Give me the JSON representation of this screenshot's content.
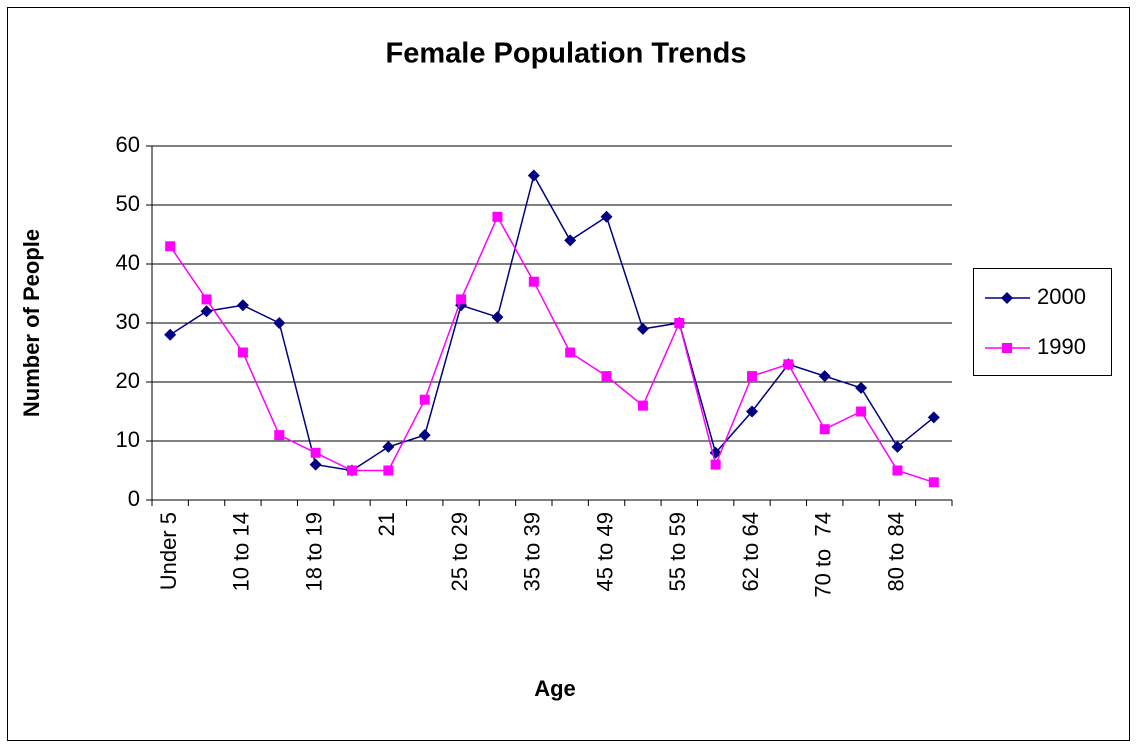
{
  "chart_data": {
    "type": "line",
    "title": "Female Population Trends",
    "x_label": "Age",
    "y_label": "Number of People",
    "categories": [
      "Under 5",
      null,
      "10 to 14",
      null,
      "18 to 19",
      null,
      "21",
      null,
      "25 to 29",
      null,
      "35 to 39",
      null,
      "45 to 49",
      null,
      "55 to 59",
      null,
      "62 to 64",
      null,
      "70 to  74",
      null,
      "80 to 84",
      null
    ],
    "series": [
      {
        "name": "2000",
        "color": "#000080",
        "marker": "diamond",
        "values": [
          28,
          32,
          33,
          30,
          6,
          5,
          9,
          11,
          33,
          31,
          55,
          44,
          48,
          29,
          30,
          8,
          15,
          23,
          21,
          19,
          9,
          14
        ]
      },
      {
        "name": "1990",
        "color": "#ff00ff",
        "marker": "square",
        "values": [
          43,
          34,
          25,
          11,
          8,
          5,
          5,
          17,
          34,
          48,
          37,
          25,
          21,
          16,
          30,
          6,
          21,
          23,
          12,
          15,
          5,
          3
        ]
      }
    ],
    "ylim": [
      0,
      60
    ],
    "yticks": [
      0,
      10,
      20,
      30,
      40,
      50,
      60
    ],
    "grid": true,
    "legend": "right"
  }
}
